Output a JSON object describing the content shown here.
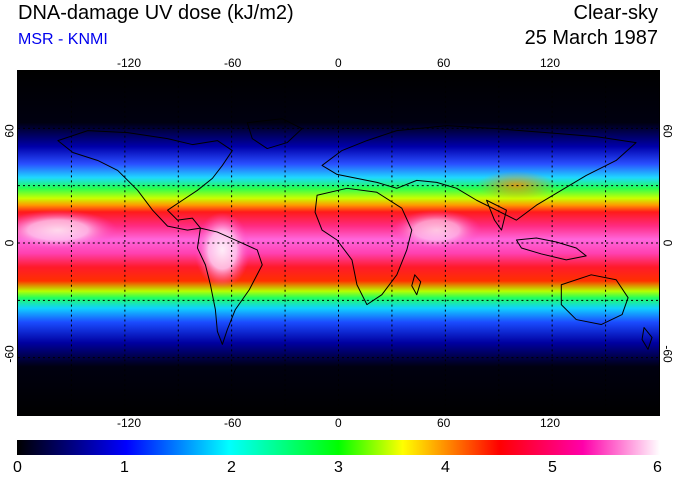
{
  "header": {
    "title": "DNA-damage UV dose (kJ/m2)",
    "subtitle": "MSR - KNMI",
    "condition": "Clear-sky",
    "date": "25 March 1987"
  },
  "map": {
    "projection": "equirectangular",
    "lon_range": [
      -180,
      180
    ],
    "lat_range": [
      -90,
      90
    ],
    "lon_ticks": [
      "-120",
      "-60",
      "0",
      "60",
      "120"
    ],
    "lat_ticks": [
      "60",
      "0",
      "-60"
    ],
    "gridlines": "dotted every 30°",
    "colors": {
      "palette": [
        "#000000",
        "#0000ff",
        "#00ffff",
        "#00ff00",
        "#ffff00",
        "#ff0000",
        "#ff00ff",
        "#ffffff"
      ]
    }
  },
  "colorbar": {
    "ticks": [
      "0",
      "1",
      "2",
      "3",
      "4",
      "5",
      "6"
    ],
    "min": 0,
    "max": 6
  }
}
